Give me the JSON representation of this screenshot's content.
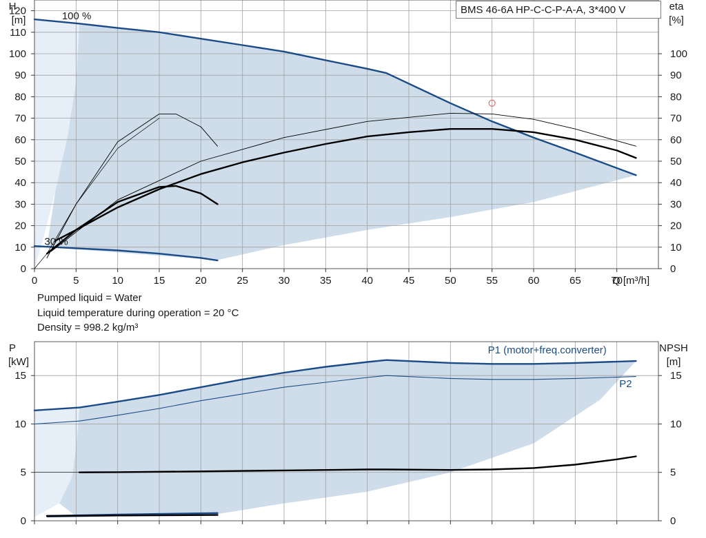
{
  "model": "BMS 46-6A HP-C-C-P-A-A, 3*400 V",
  "info": {
    "line1": "Pumped liquid = Water",
    "line2": "Liquid temperature during operation = 20 °C",
    "line3": "Density = 998.2 kg/m³"
  },
  "colors": {
    "accent": "#1a4b87",
    "area": "#c7d7e6",
    "area_light": "#e6eff8",
    "grid": "#a0a0a0",
    "marker": "#e05050"
  },
  "chart_data": [
    {
      "type": "line",
      "name": "qh-curve",
      "x_label": "Q [m³/h]",
      "y_label_left_line1": "H",
      "y_label_left_line2": "[m]",
      "y_label_right_line1": "eta",
      "y_label_right_line2": "[%]",
      "xlim": [
        0,
        75
      ],
      "ylim": [
        0,
        125
      ],
      "x_ticks": [
        0,
        5,
        10,
        15,
        20,
        25,
        30,
        35,
        40,
        45,
        50,
        55,
        60,
        65,
        70
      ],
      "y_ticks": [
        0,
        10,
        20,
        30,
        40,
        50,
        60,
        70,
        80,
        90,
        100,
        110,
        120
      ],
      "y_ticks_right": [
        0,
        10,
        20,
        30,
        40,
        50,
        60,
        70,
        80,
        90,
        100
      ],
      "annotations": [
        {
          "text": "100 %",
          "x": 3.3,
          "y": 116
        },
        {
          "text": "30 %",
          "x": 1.2,
          "y": 11
        }
      ],
      "operating_point": {
        "x": 55,
        "y": 77
      },
      "area_light_boundary": [
        [
          0,
          116
        ],
        [
          5.4,
          114
        ],
        [
          5,
          87
        ],
        [
          4,
          62
        ],
        [
          2.5,
          36
        ],
        [
          1,
          13
        ],
        [
          0,
          0
        ]
      ],
      "area_dark_boundary": [
        [
          5.4,
          114
        ],
        [
          10,
          112
        ],
        [
          20,
          107
        ],
        [
          30,
          101
        ],
        [
          40,
          93
        ],
        [
          42.3,
          91
        ],
        [
          50,
          77
        ],
        [
          55,
          68
        ],
        [
          60,
          61
        ],
        [
          65,
          54
        ],
        [
          72.3,
          43.5
        ],
        [
          60,
          31
        ],
        [
          50,
          24
        ],
        [
          40,
          18
        ],
        [
          30,
          11
        ],
        [
          22,
          4
        ],
        [
          15,
          6
        ],
        [
          5,
          9
        ],
        [
          1.5,
          10
        ],
        [
          2.5,
          36
        ],
        [
          4,
          62
        ],
        [
          5,
          87
        ]
      ],
      "series": [
        {
          "name": "H 100%",
          "style": "blue-thick",
          "points": [
            [
              0,
              116
            ],
            [
              5.4,
              114
            ],
            [
              10,
              112
            ],
            [
              15,
              110
            ],
            [
              20,
              107
            ],
            [
              25,
              104
            ],
            [
              30,
              101
            ],
            [
              35,
              97
            ],
            [
              40,
              93
            ],
            [
              42.3,
              91
            ],
            [
              50,
              77
            ],
            [
              55,
              68.5
            ],
            [
              60,
              61
            ],
            [
              65,
              54
            ],
            [
              72.3,
              43.5
            ]
          ]
        },
        {
          "name": "H 30%",
          "style": "blue-thick",
          "points": [
            [
              0,
              10.5
            ],
            [
              5,
              9.5
            ],
            [
              10,
              8.5
            ],
            [
              15,
              7
            ],
            [
              20,
              5
            ],
            [
              22,
              3.8
            ]
          ]
        },
        {
          "name": "eta 100%",
          "style": "black-thick",
          "points": [
            [
              2.5,
              13
            ],
            [
              5,
              18
            ],
            [
              10,
              28.5
            ],
            [
              15,
              37
            ],
            [
              20,
              44
            ],
            [
              25,
              49.5
            ],
            [
              30,
              54
            ],
            [
              35,
              58
            ],
            [
              40,
              61.5
            ],
            [
              45,
              63.5
            ],
            [
              50,
              65
            ],
            [
              55,
              65
            ],
            [
              60,
              63.5
            ],
            [
              65,
              60
            ],
            [
              70,
              55
            ],
            [
              72.3,
              51.5
            ]
          ]
        },
        {
          "name": "eta 30%",
          "style": "black-thick",
          "points": [
            [
              1.5,
              7
            ],
            [
              5,
              18
            ],
            [
              10,
              31
            ],
            [
              15,
              38
            ],
            [
              17,
              38.5
            ],
            [
              20,
              35
            ],
            [
              22,
              30
            ]
          ]
        },
        {
          "name": "eta thin 100%",
          "style": "black-thin",
          "points": [
            [
              2,
              8
            ],
            [
              10,
              32
            ],
            [
              20,
              50
            ],
            [
              30,
              61
            ],
            [
              40,
              68.5
            ],
            [
              50,
              72.3
            ],
            [
              55,
              72
            ],
            [
              60,
              69.5
            ],
            [
              65,
              65
            ],
            [
              72.3,
              57
            ]
          ]
        },
        {
          "name": "eta thin 30%",
          "style": "black-thin",
          "points": [
            [
              1.5,
              5
            ],
            [
              5,
              30
            ],
            [
              10,
              59
            ],
            [
              15,
              72
            ],
            [
              17,
              72
            ],
            [
              20,
              66
            ],
            [
              22,
              57
            ]
          ]
        },
        {
          "name": "system curve",
          "style": "black-hair",
          "points": [
            [
              0,
              0
            ],
            [
              1.5,
              7
            ],
            [
              5,
              30
            ],
            [
              10,
              56
            ],
            [
              15,
              70
            ]
          ]
        }
      ]
    },
    {
      "type": "line",
      "name": "power-curve",
      "y_label_left_line1": "P",
      "y_label_left_line2": "[kW]",
      "y_label_right_line1": "NPSH",
      "y_label_right_line2": "[m]",
      "xlim": [
        0,
        75
      ],
      "ylim": [
        0,
        18.5
      ],
      "x_ticks": [
        0,
        5,
        10,
        15,
        20,
        25,
        30,
        35,
        40,
        45,
        50,
        55,
        60,
        65,
        70
      ],
      "y_ticks": [
        0,
        5,
        10,
        15
      ],
      "y_ticks_right": [
        0,
        5,
        10,
        15
      ],
      "labels": [
        {
          "text": "P1 (motor+freq.converter)",
          "x": 54.5,
          "y": 17.3
        },
        {
          "text": "P2",
          "x": 70.3,
          "y": 13.8
        }
      ],
      "area_light_boundary": [
        [
          0,
          11.4
        ],
        [
          5.4,
          11.7
        ],
        [
          5,
          7.5
        ],
        [
          4.5,
          4.5
        ],
        [
          3,
          1.8
        ],
        [
          0,
          0.4
        ]
      ],
      "area_dark_boundary": [
        [
          5.4,
          11.7
        ],
        [
          10,
          12.3
        ],
        [
          20,
          13.8
        ],
        [
          30,
          15.3
        ],
        [
          42.3,
          16.6
        ],
        [
          50,
          16.3
        ],
        [
          60,
          16.2
        ],
        [
          72.3,
          16.5
        ],
        [
          68,
          12.5
        ],
        [
          60,
          8
        ],
        [
          50,
          5
        ],
        [
          45,
          4
        ],
        [
          40,
          3
        ],
        [
          30,
          1.8
        ],
        [
          22,
          0.7
        ],
        [
          15,
          0.5
        ],
        [
          5,
          0.45
        ],
        [
          3,
          1.8
        ],
        [
          4.5,
          4.5
        ],
        [
          5,
          7.5
        ]
      ],
      "series": [
        {
          "name": "P1",
          "style": "blue-thick",
          "points": [
            [
              0,
              11.4
            ],
            [
              5.4,
              11.7
            ],
            [
              10,
              12.3
            ],
            [
              15,
              13
            ],
            [
              20,
              13.8
            ],
            [
              25,
              14.6
            ],
            [
              30,
              15.3
            ],
            [
              35,
              15.9
            ],
            [
              40,
              16.4
            ],
            [
              42.3,
              16.6
            ],
            [
              50,
              16.3
            ],
            [
              55,
              16.2
            ],
            [
              60,
              16.2
            ],
            [
              65,
              16.3
            ],
            [
              72.3,
              16.5
            ]
          ]
        },
        {
          "name": "P2",
          "style": "blue-thin",
          "points": [
            [
              0,
              10
            ],
            [
              5.4,
              10.3
            ],
            [
              10,
              10.9
            ],
            [
              15,
              11.6
            ],
            [
              20,
              12.4
            ],
            [
              25,
              13.1
            ],
            [
              30,
              13.8
            ],
            [
              35,
              14.3
            ],
            [
              40,
              14.8
            ],
            [
              42.3,
              15
            ],
            [
              50,
              14.7
            ],
            [
              55,
              14.6
            ],
            [
              60,
              14.6
            ],
            [
              65,
              14.7
            ],
            [
              72.3,
              14.9
            ]
          ]
        },
        {
          "name": "P1 30%",
          "style": "blue-thick",
          "points": [
            [
              1.5,
              0.5
            ],
            [
              10,
              0.65
            ],
            [
              22,
              0.8
            ]
          ]
        },
        {
          "name": "P2 30%",
          "style": "blue-thin",
          "points": [
            [
              1.5,
              0.4
            ],
            [
              10,
              0.5
            ],
            [
              22,
              0.65
            ]
          ]
        },
        {
          "name": "NPSH",
          "style": "black-thick",
          "points": [
            [
              5.4,
              5
            ],
            [
              10,
              5.02
            ],
            [
              20,
              5.1
            ],
            [
              30,
              5.2
            ],
            [
              40,
              5.3
            ],
            [
              42.3,
              5.3
            ],
            [
              50,
              5.25
            ],
            [
              55,
              5.3
            ],
            [
              60,
              5.45
            ],
            [
              65,
              5.8
            ],
            [
              70,
              6.35
            ],
            [
              72.3,
              6.65
            ]
          ]
        },
        {
          "name": "NPSH 30%",
          "style": "black-thick",
          "points": [
            [
              1.5,
              0.5
            ],
            [
              10,
              0.55
            ],
            [
              22,
              0.6
            ]
          ]
        },
        {
          "name": "NPSH low",
          "style": "black-hair",
          "points": [
            [
              0,
              5
            ],
            [
              5.4,
              5
            ]
          ]
        }
      ]
    }
  ]
}
